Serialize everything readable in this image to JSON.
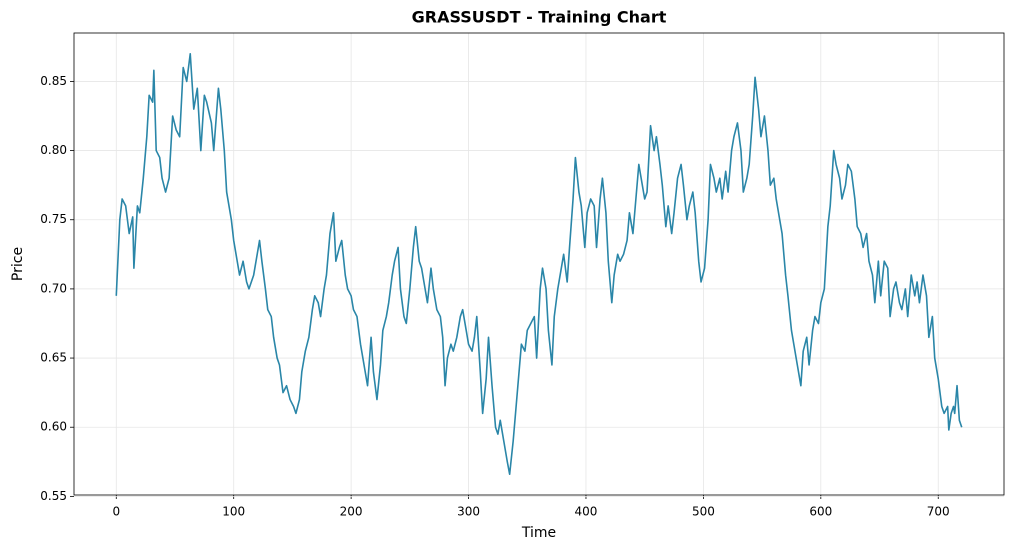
{
  "chart_data": {
    "type": "line",
    "title": "GRASSUSDT - Training Chart",
    "x_label": "Time",
    "y_label": "Price",
    "color": "#2a86a8",
    "grid": true,
    "xlim": [
      -36,
      756
    ],
    "ylim": [
      0.551,
      0.885
    ],
    "xticks": [
      0,
      100,
      200,
      300,
      400,
      500,
      600,
      700
    ],
    "yticks": [
      0.55,
      {
        "value": 0.6,
        "label": "0.60"
      },
      0.65,
      {
        "value": 0.7,
        "label": "0.70"
      },
      0.75,
      {
        "value": 0.8,
        "label": "0.80"
      },
      0.85
    ],
    "x": [
      0,
      3,
      5,
      8,
      11,
      14,
      15,
      18,
      20,
      23,
      26,
      28,
      31,
      32,
      34,
      37,
      39,
      42,
      45,
      48,
      51,
      54,
      57,
      60,
      63,
      66,
      69,
      72,
      75,
      77,
      81,
      83,
      87,
      89,
      92,
      94,
      98,
      100,
      103,
      105,
      108,
      111,
      113,
      117,
      119,
      122,
      124,
      127,
      129,
      132,
      134,
      137,
      139,
      142,
      145,
      148,
      151,
      153,
      156,
      158,
      161,
      164,
      167,
      169,
      172,
      174,
      177,
      179,
      182,
      185,
      187,
      190,
      192,
      195,
      197,
      200,
      202,
      205,
      208,
      212,
      214,
      217,
      219,
      222,
      225,
      227,
      230,
      232,
      235,
      237,
      240,
      242,
      245,
      247,
      250,
      253,
      255,
      258,
      260,
      263,
      265,
      268,
      270,
      273,
      276,
      278,
      280,
      282,
      285,
      287,
      290,
      293,
      295,
      298,
      300,
      303,
      305,
      307,
      310,
      312,
      315,
      317,
      320,
      323,
      325,
      327,
      330,
      333,
      335,
      338,
      340,
      343,
      345,
      348,
      350,
      353,
      356,
      358,
      361,
      363,
      366,
      368,
      371,
      373,
      376,
      378,
      381,
      384,
      386,
      389,
      391,
      394,
      396,
      399,
      401,
      404,
      407,
      409,
      412,
      414,
      417,
      419,
      422,
      424,
      427,
      429,
      432,
      435,
      437,
      440,
      442,
      445,
      447,
      450,
      452,
      455,
      458,
      460,
      463,
      465,
      468,
      470,
      473,
      475,
      478,
      481,
      483,
      486,
      488,
      491,
      493,
      496,
      498,
      501,
      504,
      506,
      509,
      511,
      514,
      516,
      519,
      521,
      524,
      526,
      529,
      532,
      534,
      537,
      539,
      542,
      544,
      547,
      549,
      552,
      555,
      557,
      560,
      562,
      565,
      567,
      570,
      572,
      575,
      577,
      580,
      583,
      585,
      588,
      590,
      593,
      595,
      598,
      600,
      603,
      606,
      608,
      611,
      613,
      616,
      618,
      621,
      623,
      626,
      629,
      631,
      634,
      636,
      639,
      641,
      644,
      646,
      649,
      651,
      654,
      657,
      659,
      662,
      664,
      667,
      669,
      672,
      674,
      677,
      680,
      682,
      684,
      687,
      690,
      692,
      695,
      697,
      700,
      703,
      705,
      708,
      709,
      711,
      713,
      714,
      716,
      718,
      720
    ],
    "values": [
      0.695,
      0.75,
      0.765,
      0.76,
      0.74,
      0.752,
      0.715,
      0.76,
      0.755,
      0.78,
      0.81,
      0.84,
      0.835,
      0.858,
      0.8,
      0.795,
      0.78,
      0.77,
      0.78,
      0.825,
      0.815,
      0.81,
      0.86,
      0.85,
      0.87,
      0.83,
      0.845,
      0.8,
      0.84,
      0.835,
      0.82,
      0.8,
      0.845,
      0.83,
      0.8,
      0.77,
      0.75,
      0.735,
      0.72,
      0.71,
      0.72,
      0.705,
      0.7,
      0.71,
      0.72,
      0.735,
      0.72,
      0.7,
      0.685,
      0.68,
      0.665,
      0.65,
      0.645,
      0.625,
      0.63,
      0.62,
      0.615,
      0.61,
      0.62,
      0.64,
      0.655,
      0.665,
      0.685,
      0.695,
      0.69,
      0.68,
      0.7,
      0.71,
      0.74,
      0.755,
      0.72,
      0.73,
      0.735,
      0.71,
      0.7,
      0.695,
      0.685,
      0.68,
      0.66,
      0.64,
      0.63,
      0.665,
      0.64,
      0.62,
      0.645,
      0.67,
      0.68,
      0.69,
      0.71,
      0.72,
      0.73,
      0.7,
      0.68,
      0.675,
      0.7,
      0.73,
      0.745,
      0.72,
      0.715,
      0.7,
      0.69,
      0.715,
      0.7,
      0.685,
      0.68,
      0.665,
      0.63,
      0.65,
      0.66,
      0.655,
      0.665,
      0.68,
      0.685,
      0.67,
      0.66,
      0.655,
      0.665,
      0.68,
      0.64,
      0.61,
      0.635,
      0.665,
      0.63,
      0.6,
      0.595,
      0.605,
      0.59,
      0.575,
      0.566,
      0.59,
      0.61,
      0.64,
      0.66,
      0.655,
      0.67,
      0.675,
      0.68,
      0.65,
      0.7,
      0.715,
      0.7,
      0.67,
      0.645,
      0.68,
      0.7,
      0.71,
      0.725,
      0.705,
      0.73,
      0.765,
      0.795,
      0.77,
      0.76,
      0.73,
      0.755,
      0.765,
      0.76,
      0.73,
      0.765,
      0.78,
      0.755,
      0.72,
      0.69,
      0.71,
      0.725,
      0.72,
      0.725,
      0.735,
      0.755,
      0.74,
      0.76,
      0.79,
      0.78,
      0.765,
      0.77,
      0.818,
      0.8,
      0.81,
      0.79,
      0.775,
      0.745,
      0.76,
      0.74,
      0.755,
      0.78,
      0.79,
      0.775,
      0.75,
      0.76,
      0.77,
      0.755,
      0.72,
      0.705,
      0.715,
      0.75,
      0.79,
      0.78,
      0.77,
      0.78,
      0.765,
      0.785,
      0.77,
      0.8,
      0.81,
      0.82,
      0.8,
      0.77,
      0.78,
      0.79,
      0.825,
      0.853,
      0.83,
      0.81,
      0.825,
      0.8,
      0.775,
      0.78,
      0.765,
      0.75,
      0.74,
      0.71,
      0.695,
      0.67,
      0.66,
      0.645,
      0.63,
      0.655,
      0.665,
      0.645,
      0.67,
      0.68,
      0.675,
      0.69,
      0.7,
      0.745,
      0.76,
      0.8,
      0.79,
      0.78,
      0.765,
      0.775,
      0.79,
      0.785,
      0.765,
      0.745,
      0.74,
      0.73,
      0.74,
      0.72,
      0.71,
      0.69,
      0.72,
      0.695,
      0.72,
      0.715,
      0.68,
      0.7,
      0.705,
      0.69,
      0.685,
      0.7,
      0.68,
      0.71,
      0.695,
      0.705,
      0.69,
      0.71,
      0.695,
      0.665,
      0.68,
      0.65,
      0.635,
      0.615,
      0.61,
      0.615,
      0.598,
      0.61,
      0.615,
      0.61,
      0.63,
      0.605,
      0.6
    ]
  }
}
